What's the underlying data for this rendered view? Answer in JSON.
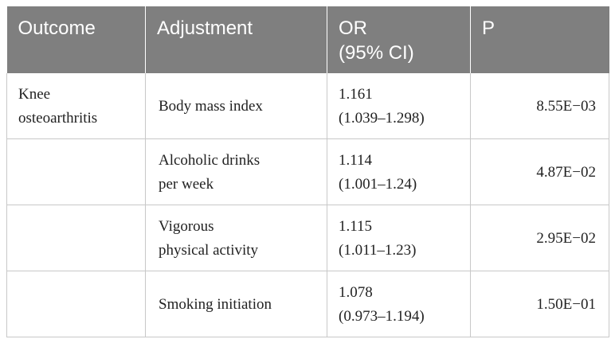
{
  "table": {
    "headers": {
      "outcome": "Outcome",
      "adjustment": "Adjustment",
      "or_line1": "OR",
      "or_line2": "(95% CI)",
      "p": "P"
    },
    "rows": [
      {
        "outcome_line1": "Knee",
        "outcome_line2": "osteoarthritis",
        "adjustment_line1": "Body mass index",
        "adjustment_line2": "",
        "or": "1.161",
        "ci": "(1.039–1.298)",
        "p": "8.55E−03"
      },
      {
        "outcome_line1": "",
        "outcome_line2": "",
        "adjustment_line1": "Alcoholic drinks",
        "adjustment_line2": "per week",
        "or": "1.114",
        "ci": "(1.001–1.24)",
        "p": "4.87E−02"
      },
      {
        "outcome_line1": "",
        "outcome_line2": "",
        "adjustment_line1": "Vigorous",
        "adjustment_line2": "physical activity",
        "or": "1.115",
        "ci": "(1.011–1.23)",
        "p": "2.95E−02"
      },
      {
        "outcome_line1": "",
        "outcome_line2": "",
        "adjustment_line1": "Smoking initiation",
        "adjustment_line2": "",
        "or": "1.078",
        "ci": "(0.973–1.194)",
        "p": "1.50E−01"
      }
    ]
  }
}
